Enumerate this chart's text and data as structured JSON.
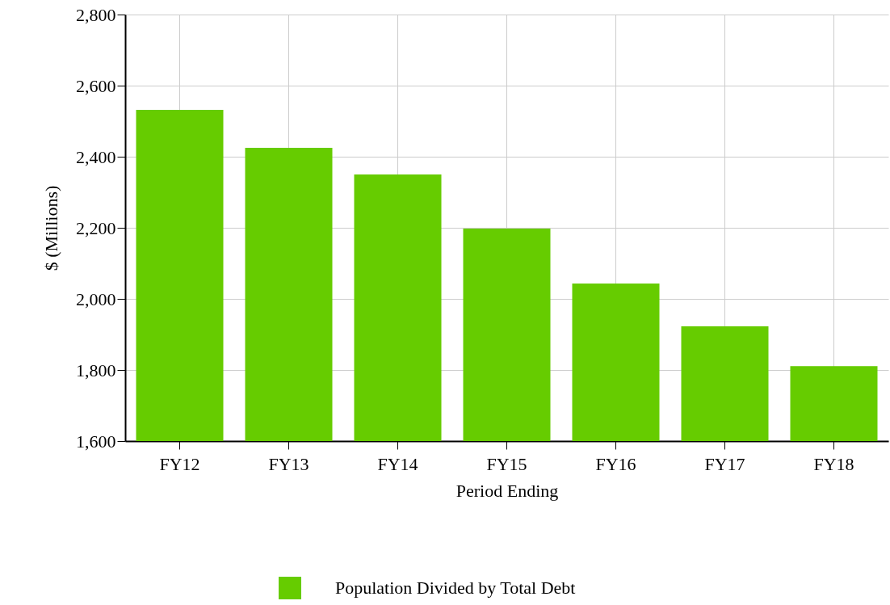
{
  "chart_data": {
    "type": "bar",
    "xlabel": "Period Ending",
    "ylabel": "$ (Millions)",
    "categories": [
      "FY12",
      "FY13",
      "FY14",
      "FY15",
      "FY16",
      "FY17",
      "FY18"
    ],
    "series": [
      {
        "name": "Population Divided by Total Debt",
        "color": "#66cc00",
        "values": [
          2532,
          2425,
          2350,
          2198,
          2043,
          1923,
          1811
        ]
      }
    ],
    "ylim": [
      1600,
      2800
    ],
    "yticks": [
      {
        "value": 1600,
        "label": "1,600"
      },
      {
        "value": 1800,
        "label": "1,800"
      },
      {
        "value": 2000,
        "label": "2,000"
      },
      {
        "value": 2200,
        "label": "2,200"
      },
      {
        "value": 2400,
        "label": "2,400"
      },
      {
        "value": 2600,
        "label": "2,600"
      },
      {
        "value": 2800,
        "label": "2,800"
      }
    ],
    "grid": true,
    "legend": "bottom"
  }
}
